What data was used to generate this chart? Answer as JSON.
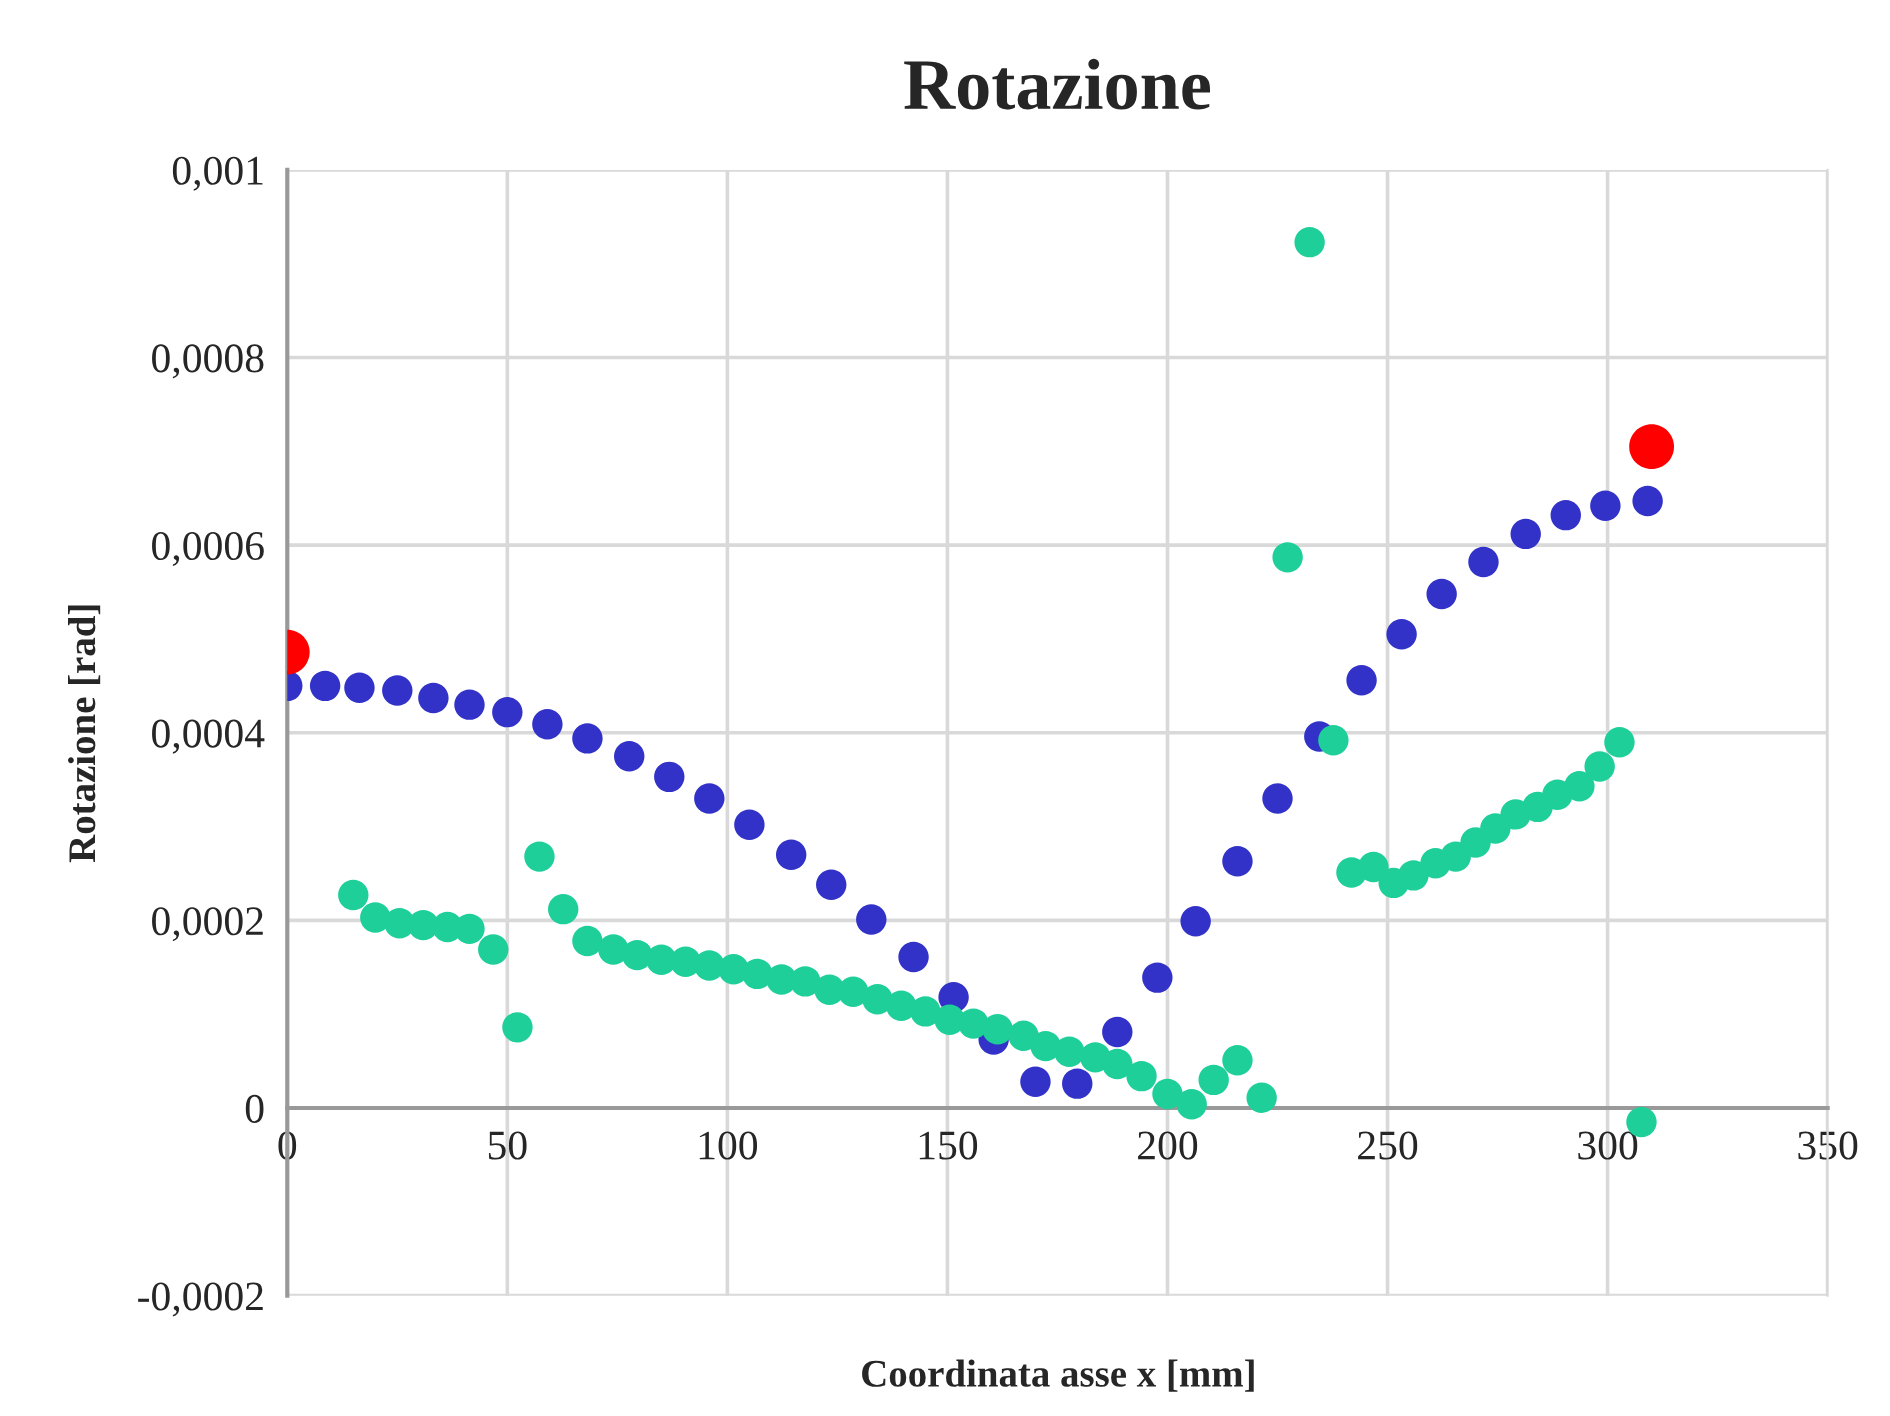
{
  "chart_data": {
    "type": "scatter",
    "title": "Rotazione",
    "xlabel": "Coordinata asse x [mm]",
    "ylabel": "Rotazione [rad]",
    "xlim": [
      0,
      350
    ],
    "xticks": [
      0,
      50,
      100,
      150,
      200,
      250,
      300,
      350
    ],
    "ylim": [
      -0.0002,
      0.001
    ],
    "yticks": [
      {
        "value": -0.0002,
        "label": "-0,0002"
      },
      0,
      {
        "value": 0.0002,
        "label": "0,0002"
      },
      {
        "value": 0.0004,
        "label": "0,0004"
      },
      {
        "value": 0.0006,
        "label": "0,0006"
      },
      {
        "value": 0.0008,
        "label": "0,0008"
      },
      {
        "value": 0.001,
        "label": "0,001"
      }
    ],
    "grid": true,
    "legend": false,
    "marker": "circle",
    "series": [
      {
        "color": "#3232c8",
        "x": [
          0,
          8.6,
          16.4,
          25,
          33.2,
          41.4,
          50,
          59.1,
          68.2,
          77.7,
          86.8,
          95.9,
          105,
          114.5,
          123.6,
          132.7,
          142.3,
          151.4,
          160.5,
          170,
          179.5,
          188.6,
          197.7,
          206.4,
          215.9,
          225,
          234.5,
          244.1,
          253.2,
          262.3,
          271.8,
          281.4,
          290.5,
          299.5,
          309.1
        ],
        "values": [
          0.00045,
          0.00045,
          0.000448,
          0.000445,
          0.000437,
          0.00043,
          0.000422,
          0.000409,
          0.000394,
          0.000375,
          0.000353,
          0.00033,
          0.000302,
          0.00027,
          0.000238,
          0.000201,
          0.000161,
          0.000118,
          7.3e-05,
          2.8e-05,
          2.6e-05,
          8.1e-05,
          0.000139,
          0.000199,
          0.000263,
          0.00033,
          0.000396,
          0.000456,
          0.000505,
          0.000548,
          0.000582,
          0.000612,
          0.000632,
          0.000642,
          0.000647
        ]
      },
      {
        "color": "#1fcf9a",
        "x": [
          15.0,
          20.0,
          25.5,
          30.9,
          36.4,
          41.4,
          46.8,
          52.3,
          57.3,
          62.7,
          68.2,
          74.1,
          79.5,
          85.0,
          90.5,
          95.9,
          101.4,
          106.8,
          112.3,
          117.7,
          123.2,
          128.6,
          134.1,
          139.5,
          145.0,
          150.5,
          155.9,
          161.4,
          167.3,
          172.3,
          177.7,
          183.6,
          188.6,
          194.1,
          200.0,
          205.5,
          210.5,
          215.9,
          221.4,
          227.3,
          232.3,
          237.7,
          241.8,
          246.8,
          251.4,
          255.9,
          260.9,
          265.5,
          270.0,
          274.5,
          279.1,
          284.1,
          288.6,
          293.6,
          298.2,
          302.7,
          307.7
        ],
        "values": [
          0.000227,
          0.000203,
          0.000197,
          0.000195,
          0.000193,
          0.000191,
          0.000169,
          8.6e-05,
          0.000268,
          0.000212,
          0.000178,
          0.000169,
          0.000163,
          0.000158,
          0.000156,
          0.000152,
          0.000148,
          0.000143,
          0.000137,
          0.000135,
          0.000126,
          0.000124,
          0.000116,
          0.000109,
          0.000103,
          9.4e-05,
          9e-05,
          8.4e-05,
          7.7e-05,
          6.6e-05,
          6e-05,
          5.4e-05,
          4.7e-05,
          3.4e-05,
          1.5e-05,
          4e-06,
          3e-05,
          5.1e-05,
          1.1e-05,
          0.000587,
          0.000923,
          0.000392,
          0.000251,
          0.000257,
          0.00024,
          0.000248,
          0.000261,
          0.000268,
          0.000283,
          0.000298,
          0.000313,
          0.000321,
          0.000334,
          0.000343,
          0.000364,
          0.00039,
          -1.5e-05
        ]
      },
      {
        "color": "#ff0000",
        "x": [
          0,
          310
        ],
        "values": [
          0.000486,
          0.000705
        ]
      }
    ]
  }
}
